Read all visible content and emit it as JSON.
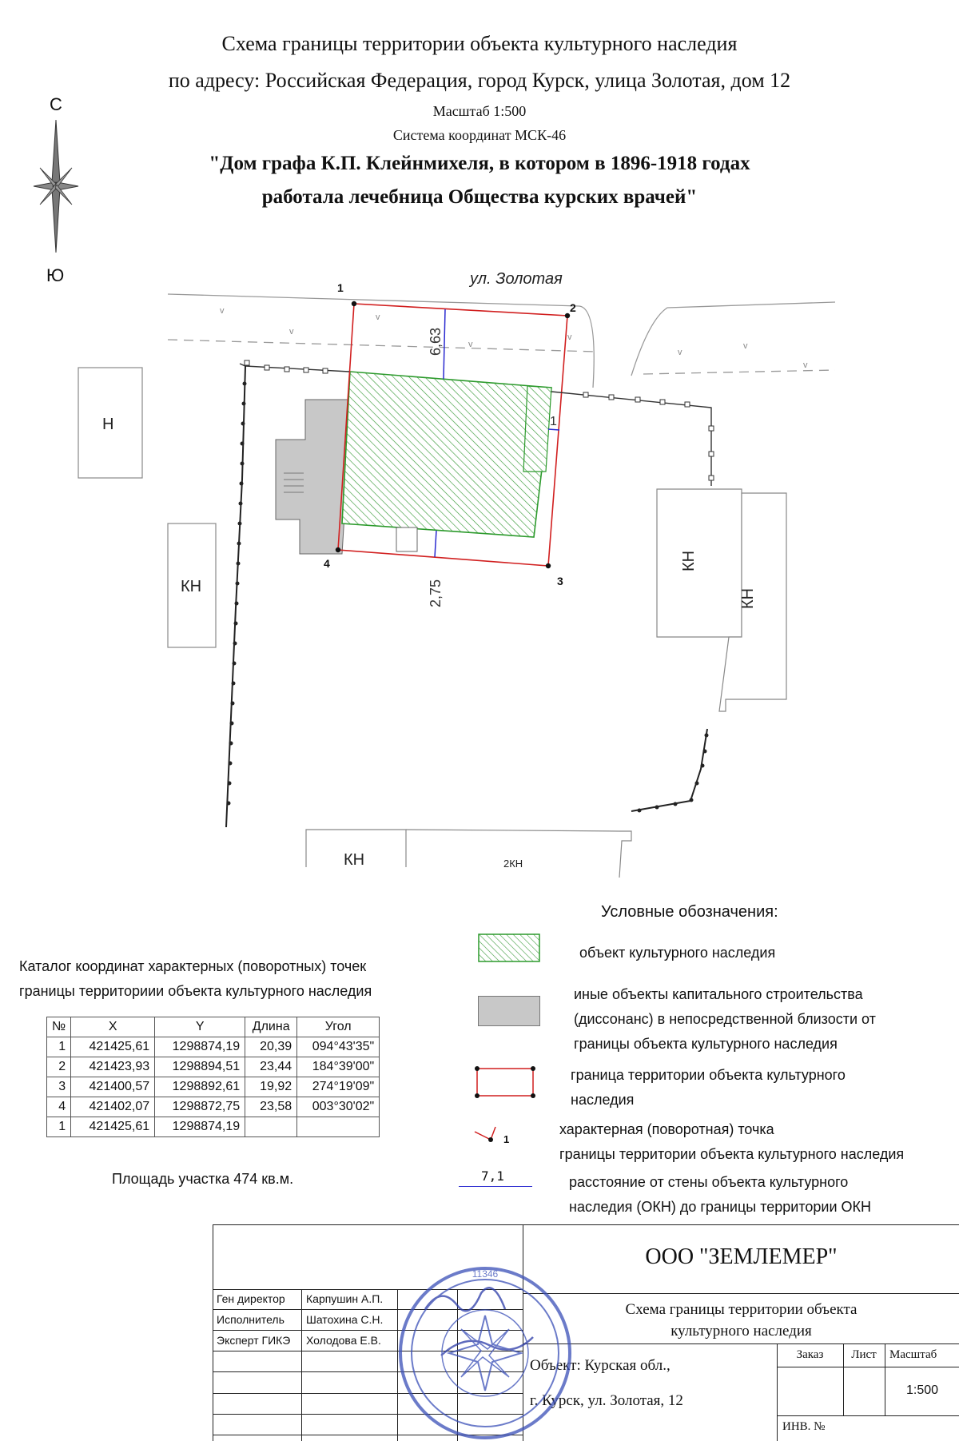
{
  "header": {
    "line1": "Схема границы территории объекта культурного наследия",
    "line2": "по адресу: Российская Федерация, город Курск, улица Золотая, дом 12",
    "scale": "Масштаб 1:500",
    "coord_system": "Система координат МСК-46",
    "object_line1": "\"Дом графа К.П. Клейнмихеля, в котором в 1896-1918 годах",
    "object_line2": "работала лечебница Общества курских врачей\""
  },
  "compass": {
    "north": "С",
    "south": "Ю"
  },
  "map": {
    "street": "ул. Золотая",
    "points": [
      "1",
      "2",
      "3",
      "4"
    ],
    "dim_top": "6,63",
    "dim_right": "1",
    "dim_bottom": "2,75",
    "labels": {
      "h": "Н",
      "kn": "КН",
      "kn2": "2КН"
    },
    "colors": {
      "boundary": "#d11f1f",
      "heritage": "#2c9a2c",
      "dissonance": "#c8c8c8",
      "dimension": "#2a2ad0"
    }
  },
  "catalog": {
    "title_line1": "Каталог координат характерных (поворотных) точек",
    "title_line2": "границы территориии объекта культурного наследия",
    "headers": [
      "№",
      "X",
      "Y",
      "Длина",
      "Угол"
    ],
    "rows": [
      [
        "1",
        "421425,61",
        "1298874,19",
        "20,39",
        "094°43'35\""
      ],
      [
        "2",
        "421423,93",
        "1298894,51",
        "23,44",
        "184°39'00\""
      ],
      [
        "3",
        "421400,57",
        "1298892,61",
        "19,92",
        "274°19'09\""
      ],
      [
        "4",
        "421402,07",
        "1298872,75",
        "23,58",
        "003°30'02\""
      ],
      [
        "1",
        "421425,61",
        "1298874,19",
        "",
        ""
      ]
    ],
    "area": "Площадь участка 474 кв.м."
  },
  "legend": {
    "title": "Условные обозначения:",
    "heritage": "объект культурного наследия",
    "other_1": "иные объекты капитального строительства",
    "other_2": "(диссонанс) в непосредственной близости от",
    "other_3": "границы объекта культурного наследия",
    "boundary_1": "граница территории объекта культурного",
    "boundary_2": "наследия",
    "point_sample": "1",
    "point_1": "характерная (поворотная) точка",
    "point_2": "границы территории объекта культурного наследия",
    "dist_sample": "7,1",
    "dist_1": "расстояние от стены объекта культурного",
    "dist_2": "наследия (ОКН) до границы территории ОКН"
  },
  "stamp": {
    "company": "ООО \"ЗЕМЛЕМЕР\"",
    "doc_title_1": "Схема границы территории объекта",
    "doc_title_2": "культурного наследия",
    "roles": [
      {
        "role": "Ген директор",
        "name": "Карпушин А.П."
      },
      {
        "role": "Исполнитель",
        "name": "Шатохина С.Н."
      },
      {
        "role": "Эксперт ГИКЭ",
        "name": "Холодова Е.В."
      }
    ],
    "object_1": "Объект: Курская обл.,",
    "object_2": "г. Курск,  ул. Золотая, 12",
    "col_order": "Заказ",
    "col_sheet": "Лист",
    "col_scale": "Масштаб",
    "scale_value": "1:500",
    "inv": "ИНВ. №",
    "seal_number": "11346"
  }
}
